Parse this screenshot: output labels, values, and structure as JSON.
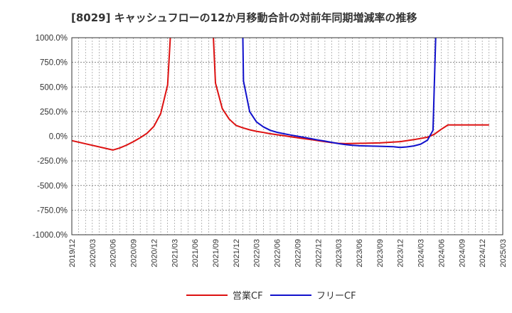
{
  "chart_data": {
    "type": "line",
    "title": "[8029]  キャッシュフローの12か月移動合計の対前年同期増減率の推移",
    "xlabel": "",
    "ylabel": "",
    "ylim": [
      -1000,
      1000
    ],
    "y_ticks": [
      1000,
      750,
      500,
      250,
      0,
      -250,
      -500,
      -750,
      -1000
    ],
    "y_tick_labels": [
      "1000.0%",
      "750.0%",
      "500.0%",
      "250.0%",
      "0.0%",
      "-250.0%",
      "-500.0%",
      "-750.0%",
      "-1000.0%"
    ],
    "x_ticks": [
      "2019/12",
      "2020/03",
      "2020/06",
      "2020/09",
      "2020/12",
      "2021/03",
      "2021/06",
      "2021/09",
      "2021/12",
      "2022/03",
      "2022/06",
      "2022/09",
      "2022/12",
      "2023/03",
      "2023/06",
      "2023/09",
      "2023/12",
      "2024/03",
      "2024/06",
      "2024/09",
      "2024/12",
      "2025/03"
    ],
    "grid": true,
    "legend_position": "bottom",
    "series": [
      {
        "name": "営業CF",
        "color": "#dd1111",
        "points": [
          [
            0,
            -45
          ],
          [
            6,
            -140
          ],
          [
            7,
            -120
          ],
          [
            8,
            -90
          ],
          [
            9,
            -55
          ],
          [
            10,
            -15
          ],
          [
            11,
            30
          ],
          [
            12,
            100
          ],
          [
            13,
            230
          ],
          [
            14,
            520
          ],
          [
            14.4,
            1000
          ],
          [
            null,
            null
          ],
          [
            20.7,
            1000
          ],
          [
            21,
            540
          ],
          [
            22,
            280
          ],
          [
            23,
            175
          ],
          [
            24,
            110
          ],
          [
            25,
            85
          ],
          [
            26,
            65
          ],
          [
            27,
            50
          ],
          [
            28,
            38
          ],
          [
            29,
            25
          ],
          [
            30,
            15
          ],
          [
            31,
            5
          ],
          [
            32,
            -5
          ],
          [
            33,
            -15
          ],
          [
            34,
            -25
          ],
          [
            35,
            -35
          ],
          [
            36,
            -45
          ],
          [
            37,
            -55
          ],
          [
            38,
            -65
          ],
          [
            39,
            -72
          ],
          [
            40,
            -75
          ],
          [
            45,
            -68
          ],
          [
            48,
            -55
          ],
          [
            50,
            -35
          ],
          [
            52,
            -10
          ],
          [
            53,
            20
          ],
          [
            54,
            70
          ],
          [
            55,
            115
          ],
          [
            61,
            115
          ]
        ]
      },
      {
        "name": "フリーCF",
        "color": "#1111cc",
        "points": [
          [
            25,
            1000
          ],
          [
            25.1,
            560
          ],
          [
            26,
            250
          ],
          [
            27,
            145
          ],
          [
            28,
            95
          ],
          [
            29,
            60
          ],
          [
            30,
            40
          ],
          [
            31,
            25
          ],
          [
            32,
            12
          ],
          [
            33,
            0
          ],
          [
            34,
            -12
          ],
          [
            35,
            -25
          ],
          [
            36,
            -38
          ],
          [
            37,
            -50
          ],
          [
            38,
            -62
          ],
          [
            39,
            -75
          ],
          [
            40,
            -85
          ],
          [
            41,
            -92
          ],
          [
            42,
            -97
          ],
          [
            45,
            -102
          ],
          [
            47,
            -107
          ],
          [
            48,
            -113
          ],
          [
            49,
            -108
          ],
          [
            50,
            -98
          ],
          [
            51,
            -80
          ],
          [
            52,
            -40
          ],
          [
            52.8,
            60
          ],
          [
            53.2,
            1000
          ]
        ]
      }
    ]
  }
}
